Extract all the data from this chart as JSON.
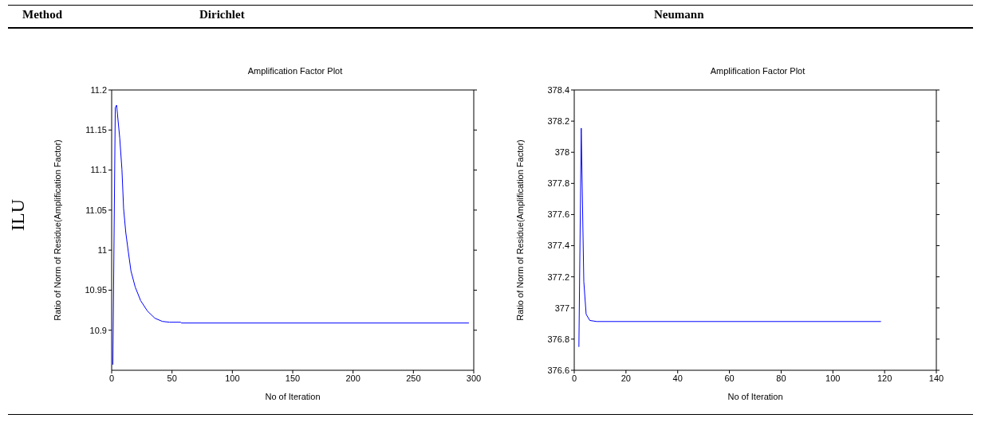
{
  "chart_data": [
    {
      "type": "other",
      "annotations": [
        "Method",
        "Dirichlet",
        "Neumann",
        "ILU"
      ]
    },
    {
      "type": "line",
      "title": "Amplification Factor Plot",
      "xlabel": "No of Iteration",
      "ylabel": "Ratio of Norm of Residue(Amplification Factor)",
      "xlim": [
        0,
        300
      ],
      "xticks": [
        0,
        50,
        100,
        150,
        200,
        250,
        300
      ],
      "ylim": [
        10.85,
        11.2
      ],
      "yticks": [
        10.9,
        10.95,
        11,
        11.05,
        11.1,
        11.15,
        11.2
      ],
      "grid": false,
      "legend": false,
      "marker": "none",
      "line_style": "solid",
      "series": [
        {
          "color": "#0000ff",
          "x": [
            1,
            3,
            4.1,
            6.7,
            8.5,
            9.9,
            11.7,
            13.8,
            16,
            19.5,
            24,
            29.6,
            35.8,
            42,
            48,
            57,
            58,
            296
          ],
          "values": [
            10.857,
            11.178,
            11.181,
            11.14,
            11.101,
            11.052,
            11.022,
            10.998,
            10.974,
            10.954,
            10.937,
            10.924,
            10.915,
            10.911,
            10.91,
            10.91,
            10.909,
            10.909
          ]
        }
      ]
    },
    {
      "type": "line",
      "title": "Amplification Factor Plot",
      "xlabel": "No of Iteration",
      "ylabel": "Ratio of Norm of Residue(Amplification Factor)",
      "xlim": [
        0,
        140
      ],
      "xticks": [
        0,
        20,
        40,
        60,
        80,
        100,
        120,
        140
      ],
      "ylim": [
        376.6,
        378.4
      ],
      "yticks": [
        376.6,
        376.8,
        377,
        377.2,
        377.4,
        377.6,
        377.8,
        378,
        378.2,
        378.4
      ],
      "grid": false,
      "legend": false,
      "marker": "none",
      "line_style": "solid",
      "series": [
        {
          "color": "#0000ff",
          "x": [
            1.8,
            2.7,
            3.7,
            4.6,
            6,
            8.7,
            118.6
          ],
          "values": [
            376.75,
            378.155,
            377.17,
            376.96,
            376.92,
            376.913,
            376.913
          ]
        }
      ]
    }
  ]
}
